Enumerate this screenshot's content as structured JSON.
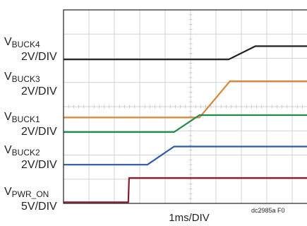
{
  "chart_data": {
    "type": "line",
    "title": "",
    "xlabel": "1ms/DIV",
    "x_divisions": 10,
    "y_divisions": 8,
    "grid": true,
    "figure_id": "dc2985a F0",
    "channels": [
      {
        "name": "V",
        "sub": "BUCK4",
        "scale": "2V/DIV",
        "color": "#231f20",
        "low_div": 1.5,
        "high_div": 2.05,
        "rise_start_div": 6.5,
        "rise_end_div": 7.55
      },
      {
        "name": "V",
        "sub": "BUCK3",
        "scale": "2V/DIV",
        "color": "#d6873a",
        "low_div": 2.95,
        "high_div": 4.45,
        "rise_start_div": 5.35,
        "rise_end_div": 6.55
      },
      {
        "name": "V",
        "sub": "BUCK1",
        "scale": "2V/DIV",
        "color": "#1f8a4b",
        "low_div": 4.35,
        "high_div": 5.05,
        "rise_start_div": 4.35,
        "rise_end_div": 5.35
      },
      {
        "name": "V",
        "sub": "BUCK2",
        "scale": "2V/DIV",
        "color": "#2e5aa8",
        "low_div": 5.65,
        "high_div": 6.4,
        "rise_start_div": 3.3,
        "rise_end_div": 4.35
      },
      {
        "name": "V",
        "sub": "PWR_ON",
        "scale": "5V/DIV",
        "color": "#8b1a2e",
        "low_div": 6.95,
        "high_div": 7.95,
        "rise_start_div": 2.55,
        "rise_end_div": 2.58
      }
    ]
  }
}
